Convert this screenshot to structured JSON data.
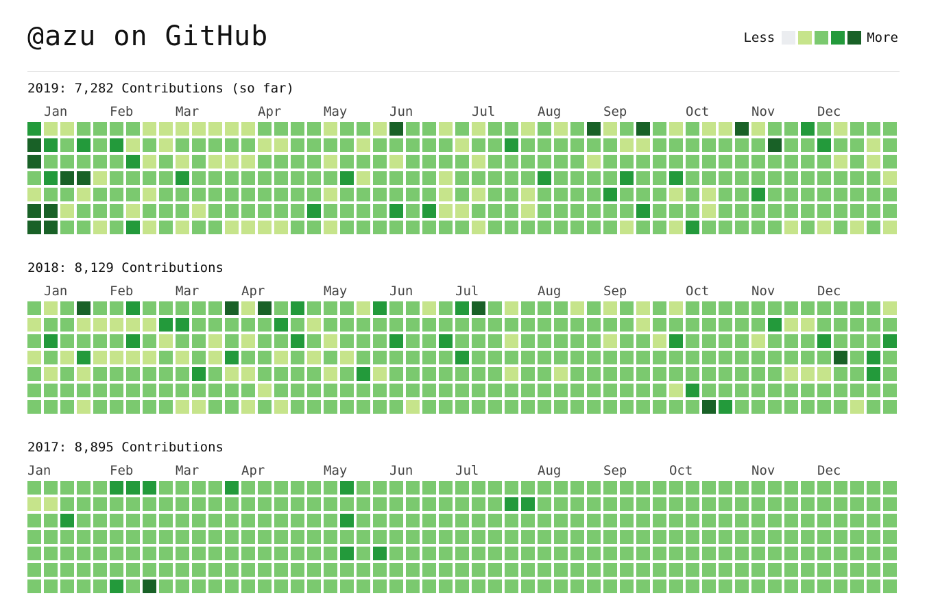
{
  "title": "@azu on GitHub",
  "legend": {
    "less": "Less",
    "more": "More",
    "colors": [
      "#ebedf0",
      "#c6e48b",
      "#7bc96f",
      "#239a3b",
      "#196127"
    ]
  },
  "years": [
    {
      "title": "2019: 7,282 Contributions (so far)",
      "months": [
        {
          "label": "Jan",
          "week": 1
        },
        {
          "label": "Feb",
          "week": 5
        },
        {
          "label": "Mar",
          "week": 9
        },
        {
          "label": "Apr",
          "week": 14
        },
        {
          "label": "May",
          "week": 18
        },
        {
          "label": "Jun",
          "week": 22
        },
        {
          "label": "Jul",
          "week": 27
        },
        {
          "label": "Aug",
          "week": 31
        },
        {
          "label": "Sep",
          "week": 35
        },
        {
          "label": "Oct",
          "week": 40
        },
        {
          "label": "Nov",
          "week": 44
        },
        {
          "label": "Dec",
          "week": 48
        }
      ],
      "weeks": [
        "3442144",
        "1323244",
        "1224212",
        "2324122",
        "2221221",
        "2322222",
        "2132213",
        "1212121",
        "1122222",
        "1213221",
        "1222212",
        "1212222",
        "1212221",
        "1212221",
        "2122221",
        "2122221",
        "2222222",
        "2222232",
        "1212121",
        "2223222",
        "2121222",
        "1222222",
        "4212232",
        "2222222",
        "2222232",
        "1221112",
        "2122212",
        "1212121",
        "2222222",
        "2322222",
        "1222112",
        "2223222",
        "1222222",
        "2222222",
        "4212222",
        "1222322",
        "2123221",
        "4122232",
        "2222222",
        "1223121",
        "2222223",
        "1222112",
        "1222222",
        "4222222",
        "1222322",
        "2422222",
        "2222221",
        "3222222",
        "2322221",
        "1212222",
        "2222221",
        "2112222",
        "2221221"
      ]
    },
    {
      "title": "2018: 8,129 Contributions",
      "months": [
        {
          "label": "Jan",
          "week": 1
        },
        {
          "label": "Feb",
          "week": 5
        },
        {
          "label": "Mar",
          "week": 9
        },
        {
          "label": "Apr",
          "week": 13
        },
        {
          "label": "May",
          "week": 18
        },
        {
          "label": "Jun",
          "week": 22
        },
        {
          "label": "Jul",
          "week": 26
        },
        {
          "label": "Aug",
          "week": 31
        },
        {
          "label": "Sep",
          "week": 35
        },
        {
          "label": "Oct",
          "week": 40
        },
        {
          "label": "Nov",
          "week": 44
        },
        {
          "label": "Dec",
          "week": 48
        }
      ],
      "weeks": [
        "2121222",
        "1232122",
        "2221222",
        "4123121",
        "2121222",
        "2121222",
        "3131222",
        "2121222",
        "2312222",
        "2321221",
        "2222321",
        "2211222",
        "4223122",
        "1212121",
        "4222212",
        "2321221",
        "3232222",
        "2121222",
        "2212122",
        "2221222",
        "1222322",
        "3222122",
        "2232222",
        "2222221",
        "1222222",
        "2232222",
        "3223222",
        "4222222",
        "2222222",
        "1212122",
        "2222222",
        "2222222",
        "2222122",
        "1222222",
        "2222222",
        "1212222",
        "2222222",
        "1122222",
        "2212222",
        "1232212",
        "2222232",
        "2222224",
        "2222223",
        "2222222",
        "2212222",
        "2322222",
        "2122122",
        "2122122",
        "2232122",
        "2224222",
        "2222221",
        "2223322",
        "1232222"
      ]
    },
    {
      "title": "2017: 8,895 Contributions",
      "months": [
        {
          "label": "Jan",
          "week": 0
        },
        {
          "label": "Feb",
          "week": 5
        },
        {
          "label": "Mar",
          "week": 9
        },
        {
          "label": "Apr",
          "week": 13
        },
        {
          "label": "May",
          "week": 18
        },
        {
          "label": "Jun",
          "week": 22
        },
        {
          "label": "Jul",
          "week": 26
        },
        {
          "label": "Aug",
          "week": 31
        },
        {
          "label": "Sep",
          "week": 35
        },
        {
          "label": "Oct",
          "week": 39
        },
        {
          "label": "Nov",
          "week": 44
        },
        {
          "label": "Dec",
          "week": 48
        }
      ],
      "weeks": [
        "2122222",
        "2122222",
        "2232222",
        "2222222",
        "2222222",
        "3222223",
        "3222222",
        "3222224",
        "2222222",
        "2222222",
        "2222222",
        "2222222",
        "3222222",
        "2222222",
        "2222222",
        "2222222",
        "2222222",
        "2222222",
        "2222222",
        "3232322",
        "2222222",
        "2222322",
        "2222222",
        "2222222",
        "2222222",
        "2222222",
        "2222222",
        "2222222",
        "2222222",
        "2322222",
        "2322222",
        "2222222",
        "2222222",
        "2222222",
        "2222222",
        "2222222",
        "2222222",
        "2222222",
        "2222222",
        "2222222",
        "2222222",
        "2222222",
        "2222222",
        "2222222",
        "2222222",
        "2222222",
        "2222222",
        "2222222",
        "2222222",
        "2222222",
        "2222222",
        "2222222",
        "2222222"
      ]
    }
  ]
}
